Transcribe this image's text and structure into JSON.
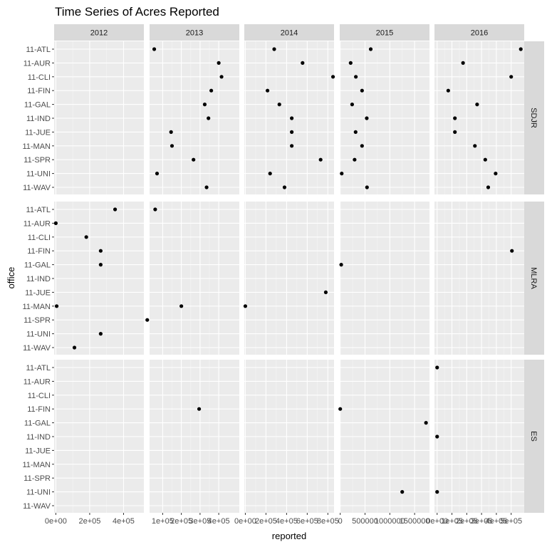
{
  "chart_data": {
    "type": "scatter",
    "title": "Time Series of Acres Reported",
    "xlabel": "reported",
    "ylabel": "office",
    "column_facets": [
      "2012",
      "2013",
      "2014",
      "2015",
      "2016"
    ],
    "row_facets": [
      "SDJR",
      "MLRA",
      "ES"
    ],
    "offices": [
      "11-ATL",
      "11-AUR",
      "11-CLI",
      "11-FIN",
      "11-GAL",
      "11-IND",
      "11-JUE",
      "11-MAN",
      "11-SPR",
      "11-UNI",
      "11-WAV"
    ],
    "x_axes": [
      {
        "facet": "2012",
        "xlim": [
          -10000,
          520000
        ],
        "ticks": [
          0,
          200000,
          400000
        ],
        "tick_labels": [
          "0e+00",
          "2e+05",
          "4e+05"
        ]
      },
      {
        "facet": "2013",
        "xlim": [
          30000,
          510000
        ],
        "ticks": [
          100000,
          200000,
          300000,
          400000
        ],
        "tick_labels": [
          "1e+05",
          "2e+05",
          "3e+05",
          "4e+05"
        ]
      },
      {
        "facet": "2014",
        "xlim": [
          -10000,
          860000
        ],
        "ticks": [
          0,
          200000,
          400000,
          600000,
          800000
        ],
        "tick_labels": [
          "0e+00",
          "2e+05",
          "4e+05",
          "6e+05",
          "8e+05"
        ]
      },
      {
        "facet": "2015",
        "xlim": [
          -10000,
          1800000
        ],
        "ticks": [
          0,
          500000,
          1000000,
          1500000
        ],
        "tick_labels": [
          "0",
          "500000",
          "1000000",
          "1500000"
        ]
      },
      {
        "facet": "2016",
        "xlim": [
          -18000,
          588000
        ],
        "ticks": [
          0,
          100000,
          200000,
          300000,
          400000,
          500000
        ],
        "tick_labels": [
          "0e+00",
          "1e+05",
          "2e+05",
          "3e+05",
          "4e+05",
          "5e+05"
        ]
      }
    ],
    "series": [
      {
        "row": "SDJR",
        "col": "2013",
        "points": [
          [
            "11-ATL",
            55000
          ],
          [
            "11-AUR",
            400000
          ],
          [
            "11-CLI",
            415000
          ],
          [
            "11-FIN",
            360000
          ],
          [
            "11-GAL",
            325000
          ],
          [
            "11-IND",
            345000
          ],
          [
            "11-JUE",
            145000
          ],
          [
            "11-MAN",
            150000
          ],
          [
            "11-SPR",
            265000
          ],
          [
            "11-UNI",
            70000
          ],
          [
            "11-WAV",
            335000
          ]
        ]
      },
      {
        "row": "SDJR",
        "col": "2014",
        "points": [
          [
            "11-ATL",
            280000
          ],
          [
            "11-AUR",
            555000
          ],
          [
            "11-CLI",
            850000
          ],
          [
            "11-FIN",
            215000
          ],
          [
            "11-GAL",
            330000
          ],
          [
            "11-IND",
            450000
          ],
          [
            "11-JUE",
            450000
          ],
          [
            "11-MAN",
            450000
          ],
          [
            "11-SPR",
            730000
          ],
          [
            "11-UNI",
            240000
          ],
          [
            "11-WAV",
            380000
          ]
        ]
      },
      {
        "row": "SDJR",
        "col": "2015",
        "points": [
          [
            "11-ATL",
            615000
          ],
          [
            "11-AUR",
            210000
          ],
          [
            "11-CLI",
            315000
          ],
          [
            "11-FIN",
            440000
          ],
          [
            "11-GAL",
            240000
          ],
          [
            "11-IND",
            535000
          ],
          [
            "11-JUE",
            310000
          ],
          [
            "11-MAN",
            440000
          ],
          [
            "11-SPR",
            290000
          ],
          [
            "11-UNI",
            30000
          ],
          [
            "11-WAV",
            540000
          ]
        ]
      },
      {
        "row": "SDJR",
        "col": "2016",
        "points": [
          [
            "11-ATL",
            565000
          ],
          [
            "11-AUR",
            175000
          ],
          [
            "11-CLI",
            500000
          ],
          [
            "11-FIN",
            75000
          ],
          [
            "11-GAL",
            270000
          ],
          [
            "11-IND",
            120000
          ],
          [
            "11-JUE",
            120000
          ],
          [
            "11-MAN",
            255000
          ],
          [
            "11-SPR",
            325000
          ],
          [
            "11-UNI",
            395000
          ],
          [
            "11-WAV",
            345000
          ]
        ]
      },
      {
        "row": "MLRA",
        "col": "2012",
        "points": [
          [
            "11-ATL",
            350000
          ],
          [
            "11-AUR",
            0
          ],
          [
            "11-CLI",
            180000
          ],
          [
            "11-FIN",
            265000
          ],
          [
            "11-GAL",
            265000
          ],
          [
            "11-MAN",
            5000
          ],
          [
            "11-SPR",
            540000
          ],
          [
            "11-UNI",
            265000
          ],
          [
            "11-WAV",
            110000
          ]
        ]
      },
      {
        "row": "MLRA",
        "col": "2013",
        "points": [
          [
            "11-ATL",
            60000
          ],
          [
            "11-MAN",
            200000
          ]
        ]
      },
      {
        "row": "MLRA",
        "col": "2014",
        "points": [
          [
            "11-JUE",
            780000
          ],
          [
            "11-MAN",
            0
          ]
        ]
      },
      {
        "row": "MLRA",
        "col": "2015",
        "points": [
          [
            "11-GAL",
            20000
          ]
        ]
      },
      {
        "row": "MLRA",
        "col": "2016",
        "points": [
          [
            "11-FIN",
            505000
          ]
        ]
      },
      {
        "row": "ES",
        "col": "2013",
        "points": [
          [
            "11-FIN",
            295000
          ]
        ]
      },
      {
        "row": "ES",
        "col": "2015",
        "points": [
          [
            "11-FIN",
            0
          ],
          [
            "11-GAL",
            1730000
          ],
          [
            "11-UNI",
            1250000
          ]
        ]
      },
      {
        "row": "ES",
        "col": "2016",
        "points": [
          [
            "11-ATL",
            0
          ],
          [
            "11-IND",
            0
          ],
          [
            "11-UNI",
            0
          ]
        ]
      }
    ]
  }
}
